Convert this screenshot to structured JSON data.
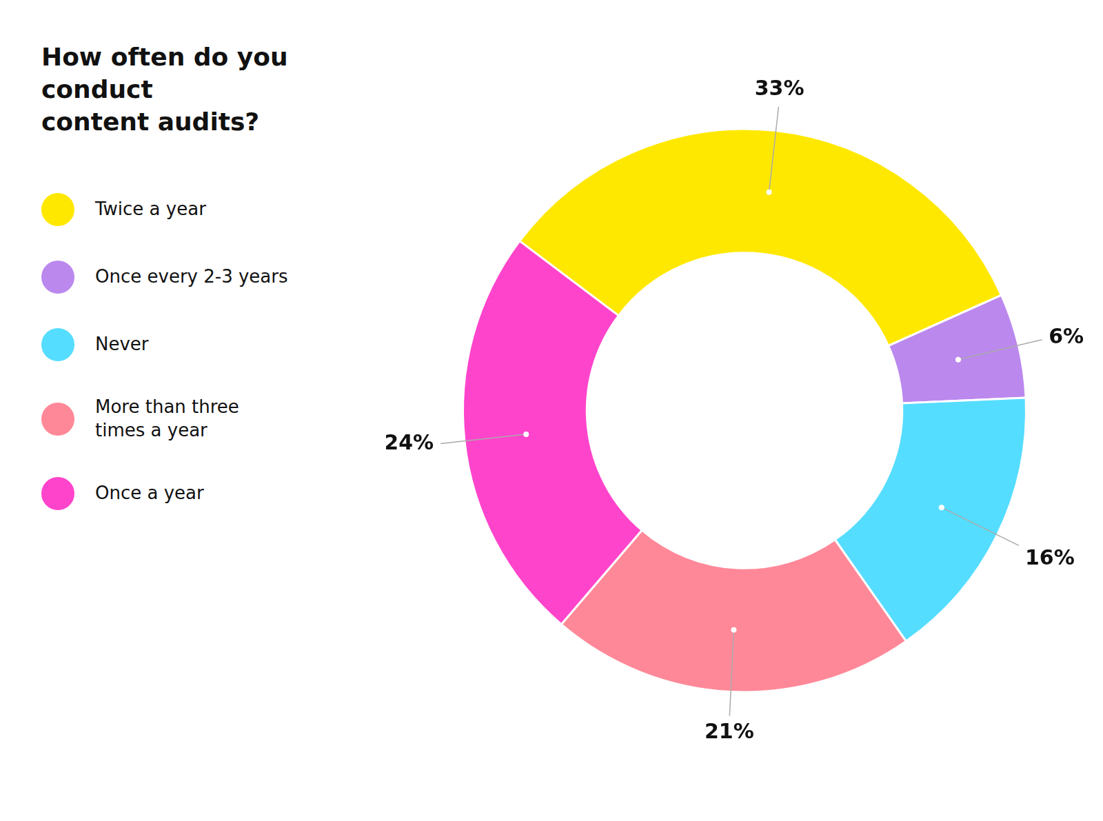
{
  "chart_data": {
    "type": "doughnut",
    "title": "How often do you conduct\ncontent audits?",
    "categories": [
      "Twice a year",
      "Once every 2-3 years",
      "Never",
      "More than three\ntimes a year",
      "Once a year"
    ],
    "values": [
      33,
      6,
      16,
      21,
      24
    ],
    "value_labels": [
      "33%",
      "6%",
      "16%",
      "21%",
      "24%"
    ],
    "colors": [
      "#FFE800",
      "#BB88EE",
      "#55DDFF",
      "#FF8898",
      "#FF44CC"
    ],
    "data_labels": true,
    "legend": "left"
  }
}
